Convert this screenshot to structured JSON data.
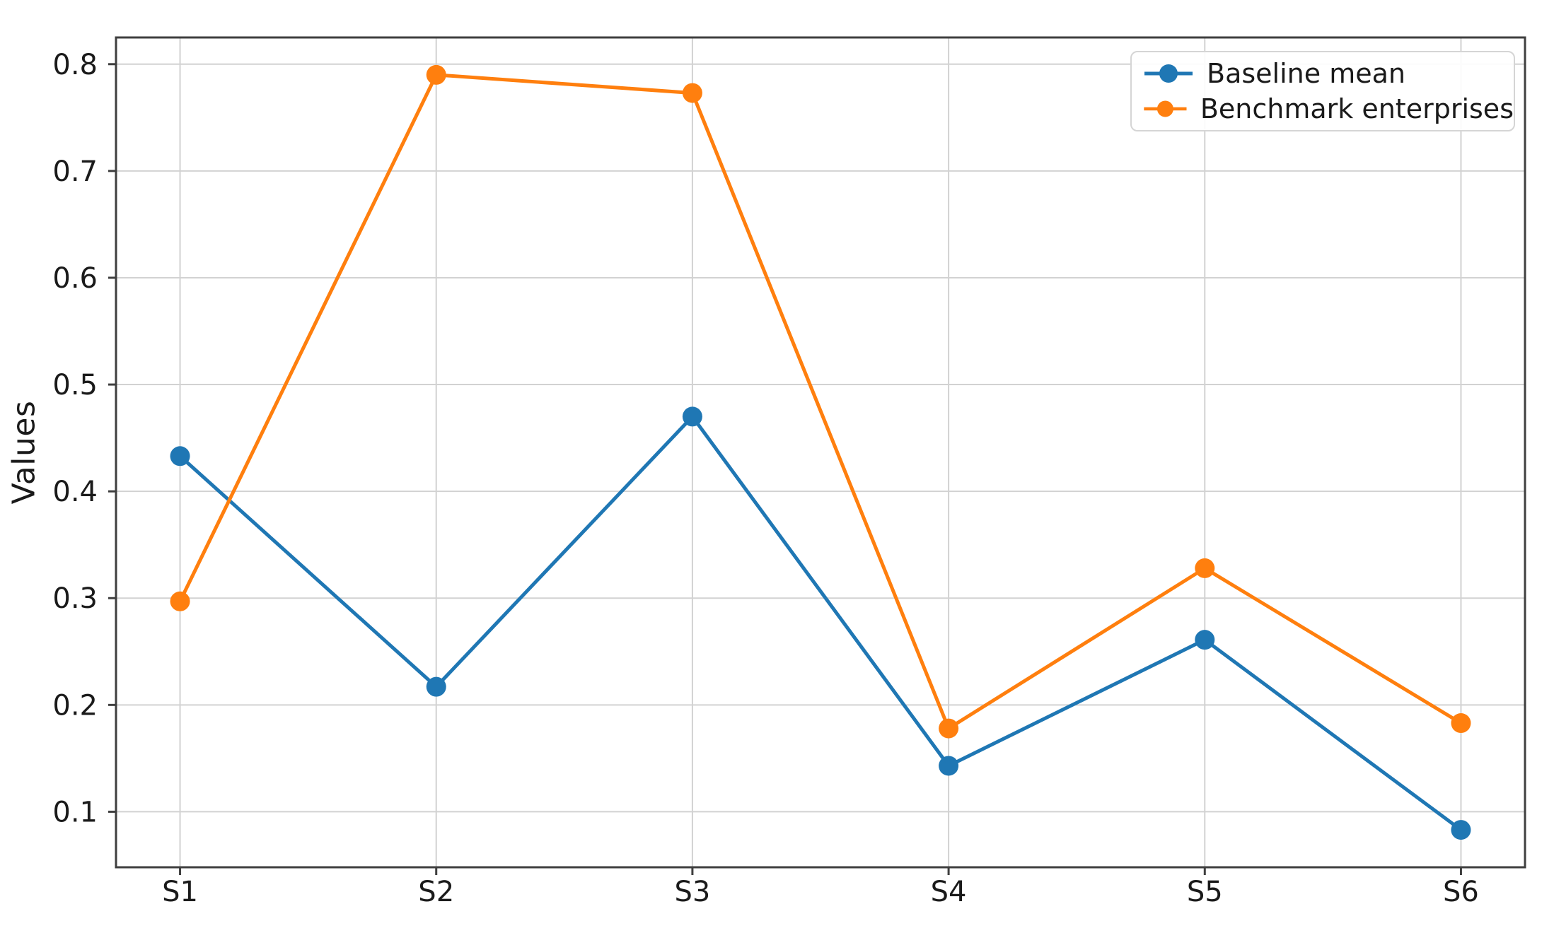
{
  "chart_data": {
    "type": "line",
    "title": "",
    "xlabel": "",
    "ylabel": "Values",
    "categories": [
      "S1",
      "S2",
      "S3",
      "S4",
      "S5",
      "S6"
    ],
    "series": [
      {
        "name": "Baseline mean",
        "color": "#1f77b4",
        "values": [
          0.433,
          0.217,
          0.47,
          0.143,
          0.261,
          0.083
        ]
      },
      {
        "name": "Benchmark enterprises",
        "color": "#ff7f0e",
        "values": [
          0.297,
          0.79,
          0.773,
          0.178,
          0.328,
          0.183
        ]
      }
    ],
    "yticks": [
      0.1,
      0.2,
      0.3,
      0.4,
      0.5,
      0.6,
      0.7,
      0.8
    ],
    "ylim": [
      0.048,
      0.825
    ],
    "grid": true,
    "legend_position": "upper right",
    "grid_color": "#d2d2d2",
    "axis_color": "#3f3f3f",
    "text_color": "#1a1a1a",
    "background_color": "#ffffff"
  }
}
